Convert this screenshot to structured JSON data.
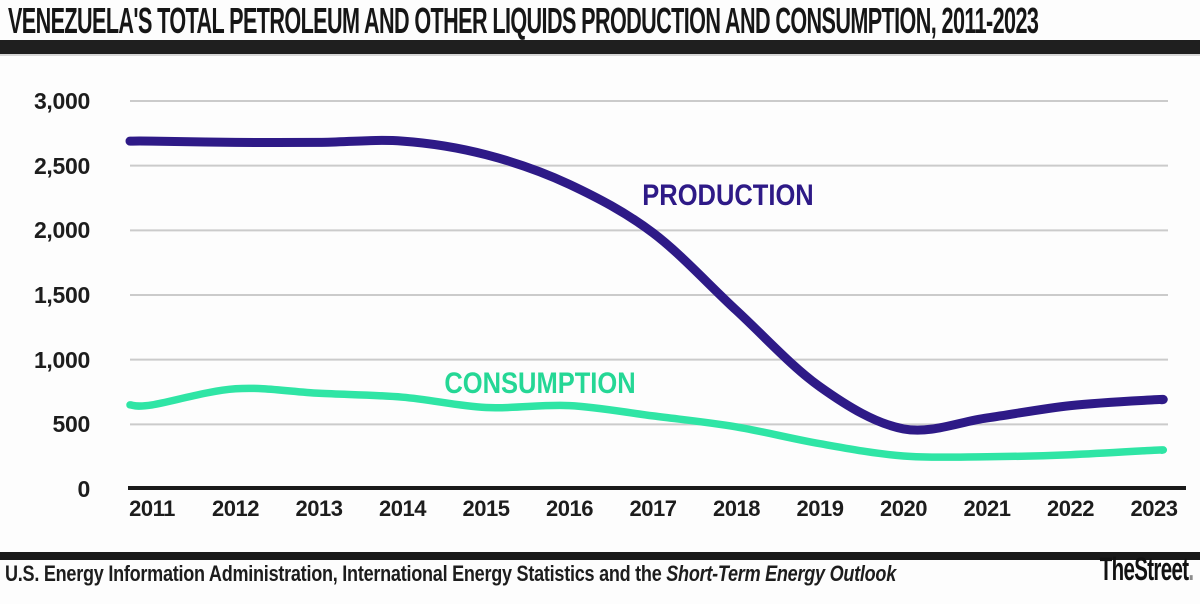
{
  "header": {
    "title": "VENEZUELA'S TOTAL PETROLEUM AND OTHER LIQUIDS PRODUCTION AND CONSUMPTION, 2011-2023"
  },
  "footer": {
    "source_prefix": "U.S. Energy Information Administration, International Energy Statistics and the ",
    "source_italic": "Short-Term Energy Outlook",
    "brand_name": "TheStreet",
    "brand_dot": "."
  },
  "colors": {
    "grid": "#cbcbcb",
    "axis": "#1a1a1a",
    "divider_bar": "#1f1f1f",
    "production": "#2e1a87",
    "consumption": "#2fe5a5"
  },
  "chart_data": {
    "type": "line",
    "title": "VENEZUELA'S TOTAL PETROLEUM AND OTHER LIQUIDS PRODUCTION AND CONSUMPTION, 2011-2023",
    "x": [
      2011,
      2012,
      2013,
      2014,
      2015,
      2016,
      2017,
      2018,
      2019,
      2020,
      2021,
      2022,
      2023
    ],
    "x_labels": [
      "2011",
      "2012",
      "2013",
      "2014",
      "2015",
      "2016",
      "2017",
      "2018",
      "2019",
      "2020",
      "2021",
      "2022",
      "2023"
    ],
    "y_ticks": [
      {
        "label": "3,000",
        "value": 3000
      },
      {
        "label": "2,500",
        "value": 2500
      },
      {
        "label": "2,000",
        "value": 2000
      },
      {
        "label": "1,500",
        "value": 1500
      },
      {
        "label": "1,000",
        "value": 1000
      },
      {
        "label": "500",
        "value": 500
      },
      {
        "label": "0",
        "value": 0
      }
    ],
    "ylim": [
      0,
      3000
    ],
    "xlabel": "",
    "ylabel": "",
    "grid": true,
    "legend": "inline-series-labels",
    "series": [
      {
        "name": "PRODUCTION",
        "color": "#2e1a87",
        "label_color": "#2e1a87",
        "values": [
          2690,
          2680,
          2680,
          2690,
          2585,
          2355,
          1980,
          1380,
          790,
          465,
          550,
          645,
          690
        ]
      },
      {
        "name": "CONSUMPTION",
        "color": "#2fe5a5",
        "label_color": "#25d795",
        "values": [
          650,
          775,
          740,
          710,
          630,
          645,
          565,
          480,
          350,
          255,
          250,
          265,
          300
        ]
      }
    ]
  }
}
